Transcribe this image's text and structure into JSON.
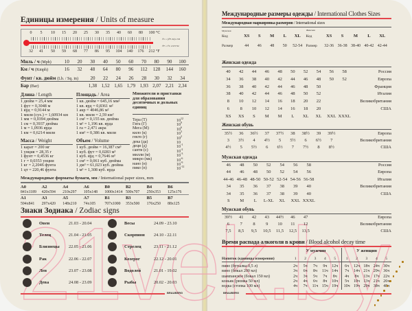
{
  "left": {
    "units_title_ru": "Единицы измерения",
    "units_title_en": "/ Units of measure",
    "thermo": {
      "c": [
        "0",
        "5",
        "10",
        "15",
        "20",
        "25",
        "30",
        "35",
        "40",
        "60",
        "80",
        "100"
      ],
      "f": [
        "32",
        "41",
        "50",
        "59",
        "68",
        "77",
        "86",
        "95",
        "104",
        "140",
        "176",
        "212"
      ],
      "c_unit": "°C",
      "f_unit": "°F",
      "c_formula": "t°C = (t°F-32) x 5/9",
      "f_formula": "t°F = t°C x 9/5+32",
      "color": "#e8202a"
    },
    "speed": [
      {
        "ru": "Миль / ч",
        "en": "(Mph)",
        "values": [
          "10",
          "20",
          "30",
          "40",
          "50",
          "60",
          "70",
          "80",
          "90",
          "100"
        ]
      },
      {
        "ru": "Км / ч",
        "en": "(Kmph)",
        "values": [
          "16",
          "32",
          "48",
          "64",
          "80",
          "96",
          "112",
          "128",
          "144",
          "160"
        ]
      }
    ],
    "pressure": [
      {
        "ru": "Фунт / кв. дюйм",
        "en": "(Lb. / Sq. in)",
        "values": [
          "20",
          "22",
          "24",
          "26",
          "28",
          "30",
          "32",
          "34"
        ]
      },
      {
        "ru": "Бар",
        "en": "(Bar)",
        "values": [
          "1,38",
          "1,52",
          "1,65",
          "1,79",
          "1,93",
          "2,07",
          "2,21",
          "2,34"
        ]
      }
    ],
    "length": {
      "ru": "Длина",
      "en": "/ Length",
      "lines": [
        "1 дюйм = 25,4 мм",
        "1 фут = 0,3048 м",
        "1 ярд = 0,9144 м",
        "1 миля (сух.) = 1,60934 км",
        "1 мм = 0,0394 дюйма",
        "1 см = 0,3937 дюйма",
        "1 м = 1,0936 ярда",
        "1 км = 0,6214 мили"
      ]
    },
    "area": {
      "ru": "Площадь",
      "en": "/ Area",
      "lines": [
        "1 кв. дюйм = 645,16 мм²",
        "1 кв. ярд = 0,8361 м²",
        "1 акр = 4046,86 м²",
        "1 кв. миля = 2,59 км²",
        "1 см² = 0,155 кв. дюйма",
        "1 м² = 1,196 кв. ярда",
        "1 га = 2,471 акра",
        "1 км² = 0,386 кв. мили"
      ]
    },
    "weight": {
      "ru": "Масса",
      "en": "/ Weight",
      "lines": [
        "1 карат = 200 мг",
        "1 унция = 28,35 г",
        "1 фунт = 0,4536 кг",
        "1 г = 0,0353 унции",
        "1 кг = 2,2046 фунта",
        "1 цт = 220,46 фунта"
      ]
    },
    "volume": {
      "ru": "Объем",
      "en": "/ Volume",
      "lines": [
        "1 куб. дюйм = 16,387 см³",
        "1 куб. фут = 0,0283 м³",
        "1 куб. ярд = 0,7646 м³",
        "1 см³ = 0,061 куб. дюйма",
        "1 дм³ = 61,023 куб. дюйма",
        "1 м³ = 1,308 куб. ярда"
      ]
    },
    "multipliers": {
      "title": "Множители и приставки для образования десятичных и дольных единиц",
      "items": [
        {
          "name": "Тера (Т)",
          "base": "10",
          "exp": "12"
        },
        {
          "name": "Гига (Г)",
          "base": "10",
          "exp": "9"
        },
        {
          "name": "Мега (М)",
          "base": "10",
          "exp": "6"
        },
        {
          "name": "кило (к)",
          "base": "10",
          "exp": "3"
        },
        {
          "name": "гекто (г)",
          "base": "10",
          "exp": "2"
        },
        {
          "name": "дека (да)",
          "base": "10",
          "exp": ""
        },
        {
          "name": "деци (д)",
          "base": "10",
          "exp": "-1"
        },
        {
          "name": "санти (с)",
          "base": "10",
          "exp": "-2"
        },
        {
          "name": "милли (м)",
          "base": "10",
          "exp": "-3"
        },
        {
          "name": "микро (мк)",
          "base": "10",
          "exp": "-6"
        },
        {
          "name": "нано (н)",
          "base": "10",
          "exp": "-9"
        },
        {
          "name": "пико (п)",
          "base": "10",
          "exp": "-12"
        }
      ]
    },
    "paper": {
      "ru": "Международные форматы бумаги, мм",
      "en": "/ International paper sizes, mm",
      "rows": [
        [
          "A0",
          "A2",
          "A4",
          "A6",
          "B0",
          "B2",
          "B4",
          "B6"
        ],
        [
          "841x1189",
          "420x594",
          "210x297",
          "105x148",
          "1000x1414",
          "500x707",
          "250x353",
          "125x176"
        ],
        [
          "A1",
          "A3",
          "A5",
          "A7",
          "B1",
          "B3",
          "B5",
          "B7"
        ],
        [
          "594x841",
          "297x420",
          "148x210",
          "74x105",
          "707x1000",
          "353x500",
          "176x250",
          "88x125"
        ]
      ]
    },
    "zodiac": {
      "ru": "Знаки Зодиака",
      "en": "/ Zodiac signs",
      "signs": [
        {
          "name": "Овен",
          "dates": "21.03 - 20.04"
        },
        {
          "name": "Телец",
          "dates": "21.04 - 21.05"
        },
        {
          "name": "Близнецы",
          "dates": "22.05 - 21.06"
        },
        {
          "name": "Рак",
          "dates": "22.06 - 22.07"
        },
        {
          "name": "Лев",
          "dates": "23.07 - 23.08"
        },
        {
          "name": "Дева",
          "dates": "24.08 - 23.09"
        },
        {
          "name": "Весы",
          "dates": "24.09 - 23.10"
        },
        {
          "name": "Скорпион",
          "dates": "24.10 - 22.11"
        },
        {
          "name": "Стрелец",
          "dates": "23.11 - 21.12"
        },
        {
          "name": "Козерог",
          "dates": "22.12 - 20.01"
        },
        {
          "name": "Водолей",
          "dates": "21.01 - 19.02"
        },
        {
          "name": "Рыбы",
          "dates": "20.02 - 20.03"
        }
      ]
    },
    "brand": "BRAUBERG"
  },
  "right": {
    "title_ru": "Международные размеры одежды",
    "title_en": "/ International Clothes Sizes",
    "intl": {
      "ru": "Международная маркировка размеров",
      "en": "/ International sizes",
      "men_label": "Мужская",
      "women_label": "Женская",
      "code_label": "Код",
      "size_label": "Размер",
      "codes": [
        "XS",
        "S",
        "M",
        "L",
        "XL"
      ],
      "men_sizes": [
        "44",
        "46",
        "48",
        "50",
        "52-54"
      ],
      "women_sizes": [
        "32-36",
        "36-38",
        "38-40",
        "40-42",
        "42-44"
      ]
    },
    "tables": [
      {
        "title": "Женская одежда",
        "rows": [
          {
            "v": [
              "40",
              "42",
              "44",
              "46",
              "48",
              "50",
              "52",
              "54",
              "56",
              "58"
            ],
            "c": "Россия"
          },
          {
            "v": [
              "34",
              "36",
              "38",
              "40",
              "42",
              "44",
              "46",
              "48",
              "50",
              "52"
            ],
            "c": "Европа"
          },
          {
            "v": [
              "36",
              "38",
              "40",
              "42",
              "44",
              "46",
              "48",
              "50"
            ],
            "c": "Франция"
          },
          {
            "v": [
              "38",
              "40",
              "42",
              "44",
              "46",
              "48",
              "50",
              "52"
            ],
            "c": "Италия"
          },
          {
            "v": [
              "8",
              "10",
              "12",
              "14",
              "16",
              "18",
              "20",
              "22"
            ],
            "c": "Великобритания"
          },
          {
            "v": [
              "6",
              "8",
              "10",
              "12",
              "14",
              "16",
              "18",
              "20"
            ],
            "c": "США"
          },
          {
            "v": [
              "XS",
              "XS",
              "S",
              "M",
              "M",
              "L",
              "XL",
              "XL",
              "XXL",
              "XXXL"
            ],
            "c": ""
          }
        ]
      },
      {
        "title": "Женская обувь",
        "rows": [
          {
            "v": [
              "35½",
              "36",
              "36½",
              "37",
              "37½",
              "38",
              "38½",
              "39",
              "39½"
            ],
            "c": "Европа"
          },
          {
            "v": [
              "3",
              "3½",
              "4",
              "4½",
              "5",
              "5½",
              "6",
              "6½",
              "7"
            ],
            "c": "Великобритания"
          },
          {
            "v": [
              "4½",
              "5",
              "5½",
              "6",
              "6½",
              "7",
              "7½",
              "8",
              "8½"
            ],
            "c": "США"
          }
        ]
      },
      {
        "title": "Мужская одежда",
        "rows": [
          {
            "v": [
              "46",
              "48",
              "50",
              "52",
              "54",
              "56",
              "58"
            ],
            "c": "Россия"
          },
          {
            "v": [
              "44",
              "46",
              "48",
              "50",
              "52",
              "54",
              "56"
            ],
            "c": "Европа"
          },
          {
            "v": [
              "44-46",
              "46-48",
              "48-50",
              "50-52",
              "52-54",
              "54-56",
              "56-58"
            ],
            "c": "Италия"
          },
          {
            "v": [
              "34",
              "35",
              "36",
              "37",
              "38",
              "39",
              "40"
            ],
            "c": "Великобритания"
          },
          {
            "v": [
              "34",
              "35",
              "36",
              "37",
              "38",
              "39",
              "40"
            ],
            "c": "США"
          },
          {
            "v": [
              "S",
              "M",
              "L",
              "L-XL",
              "XL",
              "XXL",
              "XXXL"
            ],
            "c": ""
          }
        ]
      },
      {
        "title": "Мужская обувь",
        "rows": [
          {
            "v": [
              "39½",
              "41",
              "42",
              "43",
              "44½",
              "46",
              "47"
            ],
            "c": "Европа"
          },
          {
            "v": [
              "6",
              "7",
              "8",
              "9",
              "10",
              "11",
              "12"
            ],
            "c": "Великобритания"
          },
          {
            "v": [
              "7,5",
              "8,5",
              "9,5",
              "10,5",
              "11,5",
              "12,5",
              "13,5"
            ],
            "c": "США"
          }
        ]
      }
    ],
    "alcohol": {
      "ru": "Время распада алкоголя в крови",
      "en": "/ Blood alcohol decay time",
      "men": "У мужчин",
      "women": "У женщин",
      "col_header": "Напиток (единицы измерения)",
      "portions": [
        "1",
        "2",
        "3",
        "4",
        "5"
      ],
      "rows": [
        {
          "drink": "пиво (бутылка 0,5 л)",
          "men": [
            "2ч",
            "5ч",
            "7ч",
            "9ч",
            "12ч"
          ],
          "women": [
            "6ч",
            "12ч",
            "18ч",
            "24ч",
            "30ч"
          ]
        },
        {
          "drink": "вино (бокал 200 мл)",
          "men": [
            "3ч",
            "6ч",
            "8ч",
            "11ч",
            "14ч"
          ],
          "women": [
            "7ч",
            "14ч",
            "21ч",
            "29ч",
            "36ч"
          ]
        },
        {
          "drink": "шампанское (бокал 150 мл)",
          "men": [
            "2ч",
            "3ч",
            "5ч",
            "7ч",
            "8ч"
          ],
          "women": [
            "4ч",
            "8ч",
            "13ч",
            "17ч",
            "22ч"
          ]
        },
        {
          "drink": "коньяк (рюмка 50 мл)",
          "men": [
            "2ч",
            "4ч",
            "6ч",
            "8ч",
            "10ч"
          ],
          "women": [
            "5ч",
            "10ч",
            "13ч",
            "21ч",
            "26ч"
          ]
        },
        {
          "drink": "водка (стопка 100 мл)",
          "men": [
            "4ч",
            "7ч",
            "11ч",
            "15ч",
            "19ч"
          ],
          "women": [
            "10ч",
            "19ч",
            "29ч",
            "38ч",
            "48ч"
          ]
        }
      ]
    },
    "brand": "BRAUBERG"
  },
  "watermark": "21vek.by"
}
